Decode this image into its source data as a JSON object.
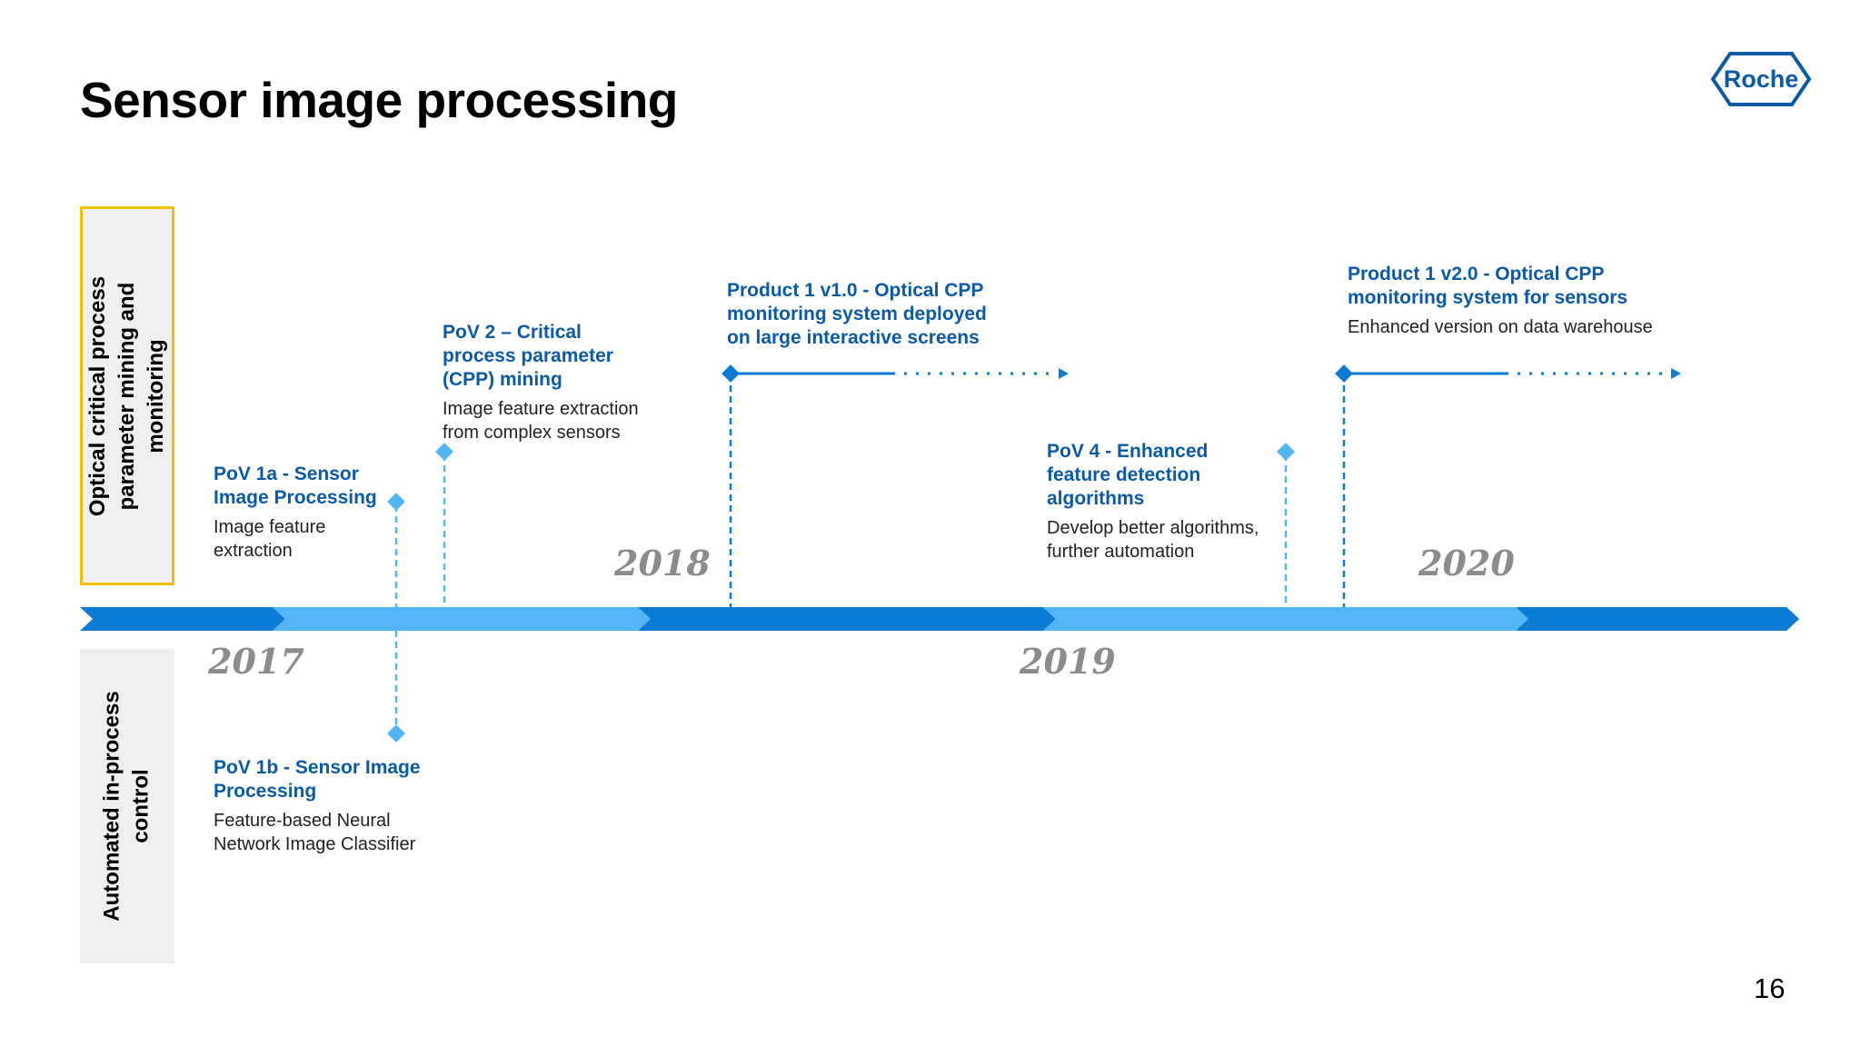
{
  "title": "Sensor image processing",
  "logo_text": "Roche",
  "page_number": "16",
  "lanes": {
    "top": [
      "Optical critical process",
      "parameter mining and",
      "monitoring"
    ],
    "bottom": [
      "Automated in-process",
      "control"
    ]
  },
  "years": [
    "2017",
    "2018",
    "2019",
    "2020"
  ],
  "milestones": [
    {
      "id": "pov1a",
      "title": [
        "PoV 1a - Sensor",
        "Image Processing"
      ],
      "desc": [
        "Image feature",
        "extraction"
      ]
    },
    {
      "id": "pov2",
      "title": [
        "PoV 2 – Critical",
        "process parameter",
        "(CPP) mining"
      ],
      "desc": [
        "Image feature extraction",
        "from complex sensors"
      ]
    },
    {
      "id": "prod1v1",
      "title": [
        "Product 1 v1.0 - Optical CPP",
        "monitoring system deployed",
        "on large interactive screens"
      ],
      "desc": []
    },
    {
      "id": "pov4",
      "title": [
        "PoV 4 - Enhanced",
        "feature detection",
        "algorithms"
      ],
      "desc": [
        "Develop better algorithms,",
        "further automation"
      ]
    },
    {
      "id": "prod1v2",
      "title": [
        "Product 1 v2.0 - Optical CPP",
        "monitoring system for sensors"
      ],
      "desc": [
        "Enhanced version on data warehouse"
      ]
    },
    {
      "id": "pov1b",
      "title": [
        "PoV 1b - Sensor Image",
        "Processing"
      ],
      "desc": [
        "Feature-based Neural",
        "Network Image Classifier"
      ]
    }
  ],
  "colors": {
    "dark_blue": "#0b7bd4",
    "light_blue": "#52b6f5",
    "title_blue": "#0b5aa8",
    "year_grey": "#8c8c8c",
    "highlight_border": "#f5c000",
    "panel_bg": "#efefef"
  }
}
